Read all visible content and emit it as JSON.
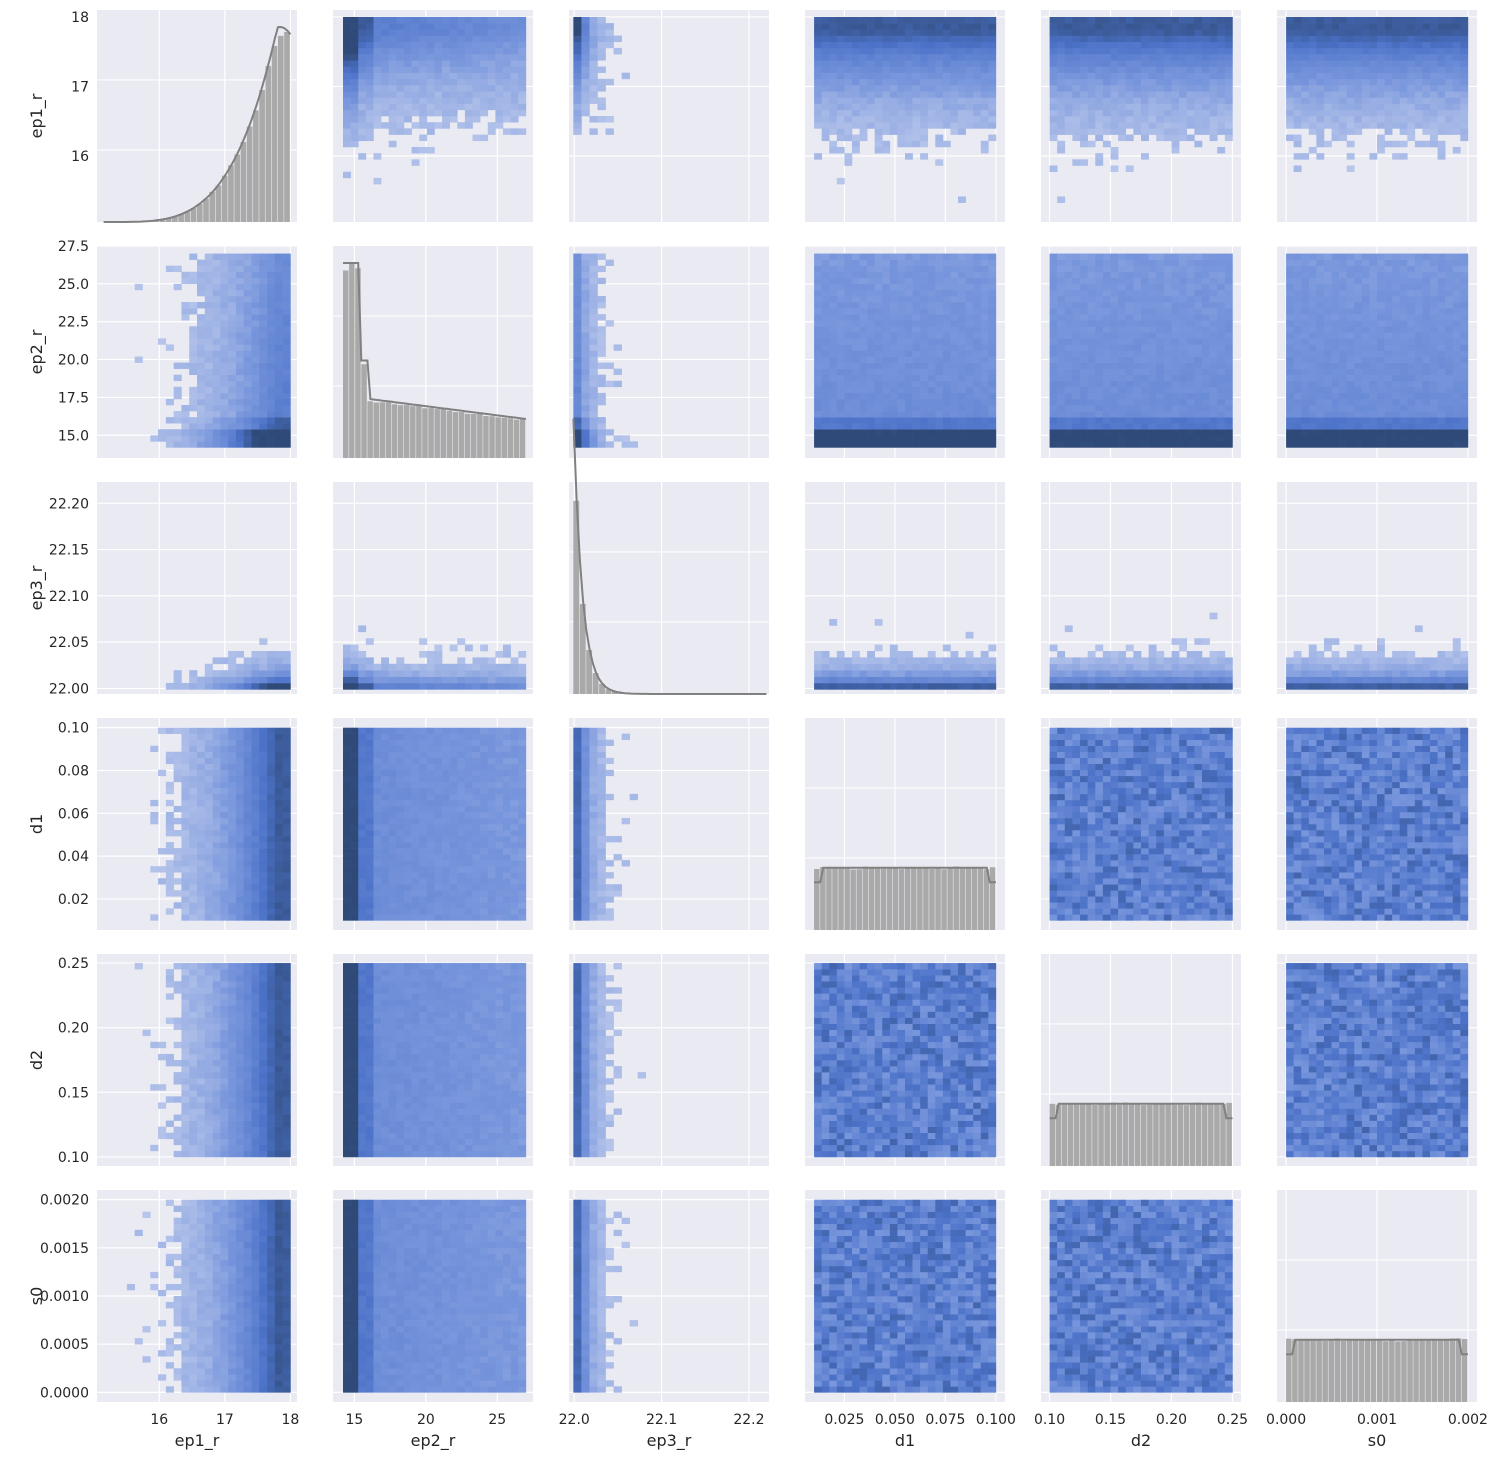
{
  "chart_data": {
    "type": "pairplot",
    "variables": [
      "ep1_r",
      "ep2_r",
      "ep3_r",
      "d1",
      "d2",
      "s0"
    ],
    "diag_kind": "hist+kde",
    "offdiag_kind": "2d histogram (heatmap)",
    "colors": {
      "background": "#EAEAF2",
      "grid": "#FFFFFF",
      "hist2d": "#4C72B0",
      "hist2d_dense": "#2F4A78",
      "diag_hist": "#A9A9A9",
      "kde": "#808080"
    },
    "axes": [
      {
        "name": "ep1_r",
        "range": [
          15.05,
          18.1
        ],
        "ticks": [
          16,
          17,
          18
        ],
        "tick_labels": [
          "16",
          "17",
          "18"
        ]
      },
      {
        "name": "ep2_r",
        "range": [
          13.5,
          27.5
        ],
        "ticks": [
          15,
          20,
          25
        ],
        "tick_labels": [
          "15",
          "20",
          "25"
        ],
        "y_ticks": [
          15,
          17.5,
          20,
          22.5,
          25,
          27.5
        ],
        "y_tick_labels": [
          "15.0",
          "17.5",
          "20.0",
          "22.5",
          "25.0",
          "27.5"
        ]
      },
      {
        "name": "ep3_r",
        "range": [
          21.994,
          22.223
        ],
        "ticks": [
          22.0,
          22.1,
          22.2
        ],
        "tick_labels": [
          "22.0",
          "22.1",
          "22.2"
        ],
        "y_ticks": [
          22.0,
          22.05,
          22.1,
          22.15,
          22.2
        ],
        "y_tick_labels": [
          "22.00",
          "22.05",
          "22.10",
          "22.15",
          "22.20"
        ]
      },
      {
        "name": "d1",
        "range": [
          0.0055,
          0.1045
        ],
        "ticks": [
          0.025,
          0.05,
          0.075,
          0.1
        ],
        "tick_labels": [
          "0.025",
          "0.050",
          "0.075",
          "0.100"
        ],
        "y_ticks": [
          0.02,
          0.04,
          0.06,
          0.08,
          0.1
        ],
        "y_tick_labels": [
          "0.02",
          "0.04",
          "0.06",
          "0.08",
          "0.10"
        ]
      },
      {
        "name": "d2",
        "range": [
          0.093,
          0.257
        ],
        "ticks": [
          0.1,
          0.15,
          0.2,
          0.25
        ],
        "tick_labels": [
          "0.10",
          "0.15",
          "0.20",
          "0.25"
        ]
      },
      {
        "name": "s0",
        "range": [
          -0.0001,
          0.0021
        ],
        "ticks": [
          0,
          0.001,
          0.002
        ],
        "tick_labels": [
          "0.000",
          "0.001",
          "0.002"
        ],
        "y_ticks": [
          0,
          0.0005,
          0.001,
          0.0015,
          0.002
        ],
        "y_tick_labels": [
          "0.0000",
          "0.0005",
          "0.0010",
          "0.0015",
          "0.0020"
        ]
      }
    ],
    "distributions": [
      {
        "name": "ep1_r",
        "shape": "left-skewed, peak near 17.9"
      },
      {
        "name": "ep2_r",
        "shape": "right-skewed, peak near 15, plateau 17-22"
      },
      {
        "name": "ep3_r",
        "shape": "right-skewed, peak near 22.01"
      },
      {
        "name": "d1",
        "shape": "uniform 0.01-0.10"
      },
      {
        "name": "d2",
        "shape": "uniform 0.10-0.25"
      },
      {
        "name": "s0",
        "shape": "uniform 0-0.002"
      }
    ]
  }
}
